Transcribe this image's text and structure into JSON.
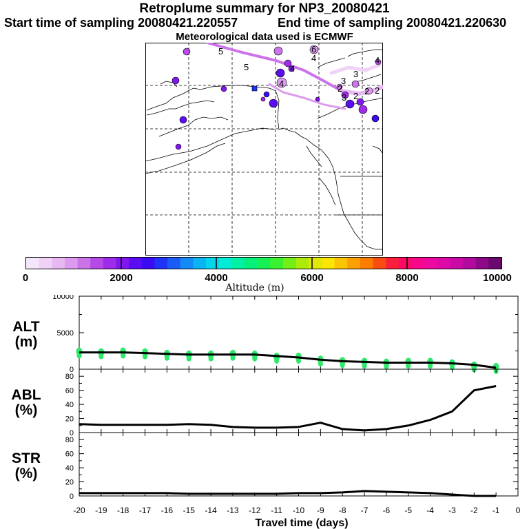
{
  "header": {
    "title": "Retroplume summary for NP3_20080421",
    "start": "Start time of sampling 20080421.220557",
    "end": "End time of sampling 20080421.220630",
    "met": "Meteorological data used is ECMWF"
  },
  "colorbar": {
    "title": "Altitude (m)",
    "labels": [
      "0",
      "2000",
      "4000",
      "6000",
      "8000",
      "10000"
    ],
    "range": [
      0,
      10000
    ],
    "colors": [
      "#f6e6fb",
      "#f1d2f7",
      "#e8b8f3",
      "#dd9bef",
      "#cc73ea",
      "#b64ae8",
      "#9f2cea",
      "#8117ee",
      "#5a0df2",
      "#3a0cf6",
      "#2033f9",
      "#1a5cf8",
      "#138bf6",
      "#0ab3f2",
      "#02d4ee",
      "#00ecd6",
      "#00f0a4",
      "#05f07a",
      "#17f055",
      "#3bf030",
      "#73ee16",
      "#aeea08",
      "#e0e803",
      "#fae600",
      "#fcc400",
      "#fca000",
      "#fc7c00",
      "#fc4d10",
      "#fc1f3c",
      "#fc0a64",
      "#f8088a",
      "#ec0aa0",
      "#dd0aa8",
      "#c90aa6",
      "#b20a9f",
      "#8c0a88",
      "#6a0a6e"
    ]
  },
  "map": {
    "cluster_labels": [
      {
        "text": "5"
      },
      {
        "text": "6"
      },
      {
        "text": "4"
      },
      {
        "text": "5"
      },
      {
        "text": "4"
      },
      {
        "text": "4"
      },
      {
        "text": "3"
      },
      {
        "text": "3"
      },
      {
        "text": "2"
      },
      {
        "text": "2"
      },
      {
        "text": "2"
      },
      {
        "text": "3"
      },
      {
        "text": "4"
      },
      {
        "text": "2"
      }
    ]
  },
  "chart_data": [
    {
      "type": "line",
      "panel": "ALT",
      "ylabel": "ALT (m)",
      "ylabel_line1": "ALT",
      "ylabel_line2": "(m)",
      "ylim": [
        0,
        10000
      ],
      "yticks": [
        "0",
        "5000",
        "10000"
      ],
      "x": [
        -20,
        -19,
        -18,
        -17,
        -16,
        -15,
        -14,
        -13,
        -12,
        -11,
        -10,
        -9,
        -8,
        -7,
        -6,
        -5,
        -4,
        -3,
        -2,
        -1
      ],
      "values": [
        2300,
        2300,
        2300,
        2200,
        2100,
        2000,
        2000,
        2000,
        2000,
        1800,
        1600,
        1300,
        1100,
        1000,
        900,
        900,
        900,
        800,
        600,
        200
      ],
      "scatter": [
        2400,
        2300,
        2400,
        2300,
        2100,
        2000,
        2000,
        2100,
        2000,
        1700,
        1700,
        1300,
        1100,
        1000,
        900,
        1000,
        1000,
        800,
        500,
        300
      ]
    },
    {
      "type": "line",
      "panel": "ABL",
      "ylabel": "ABL (%)",
      "ylabel_line1": "ABL",
      "ylabel_line2": "(%)",
      "ylim": [
        0,
        90
      ],
      "yticks": [
        "0",
        "20",
        "40",
        "60",
        "80"
      ],
      "x": [
        -20,
        -19,
        -18,
        -17,
        -16,
        -15,
        -14,
        -13,
        -12,
        -11,
        -10,
        -9,
        -8,
        -7,
        -6,
        -5,
        -4,
        -3,
        -2,
        -1
      ],
      "values": [
        12,
        11,
        11,
        11,
        11,
        12,
        11,
        8,
        7,
        7,
        8,
        14,
        5,
        3,
        5,
        10,
        18,
        30,
        60,
        66
      ]
    },
    {
      "type": "line",
      "panel": "STR",
      "ylabel": "STR (%)",
      "ylabel_line1": "STR",
      "ylabel_line2": "(%)",
      "ylim": [
        0,
        90
      ],
      "yticks": [
        "0",
        "20",
        "40",
        "60",
        "80"
      ],
      "x": [
        -20,
        -19,
        -18,
        -17,
        -16,
        -15,
        -14,
        -13,
        -12,
        -11,
        -10,
        -9,
        -8,
        -7,
        -6,
        -5,
        -4,
        -3,
        -2,
        -1
      ],
      "values": [
        4,
        4,
        4,
        4,
        4,
        3,
        3,
        3,
        3,
        3,
        4,
        4,
        5,
        7,
        6,
        5,
        4,
        2,
        0,
        0
      ],
      "xlabel": "Travel time (days)",
      "xticks": [
        "-20",
        "-19",
        "-18",
        "-17",
        "-16",
        "-15",
        "-14",
        "-13",
        "-12",
        "-11",
        "-10",
        "-9",
        "-8",
        "-7",
        "-6",
        "-5",
        "-4",
        "-3",
        "-2",
        "-1",
        "0"
      ]
    }
  ]
}
